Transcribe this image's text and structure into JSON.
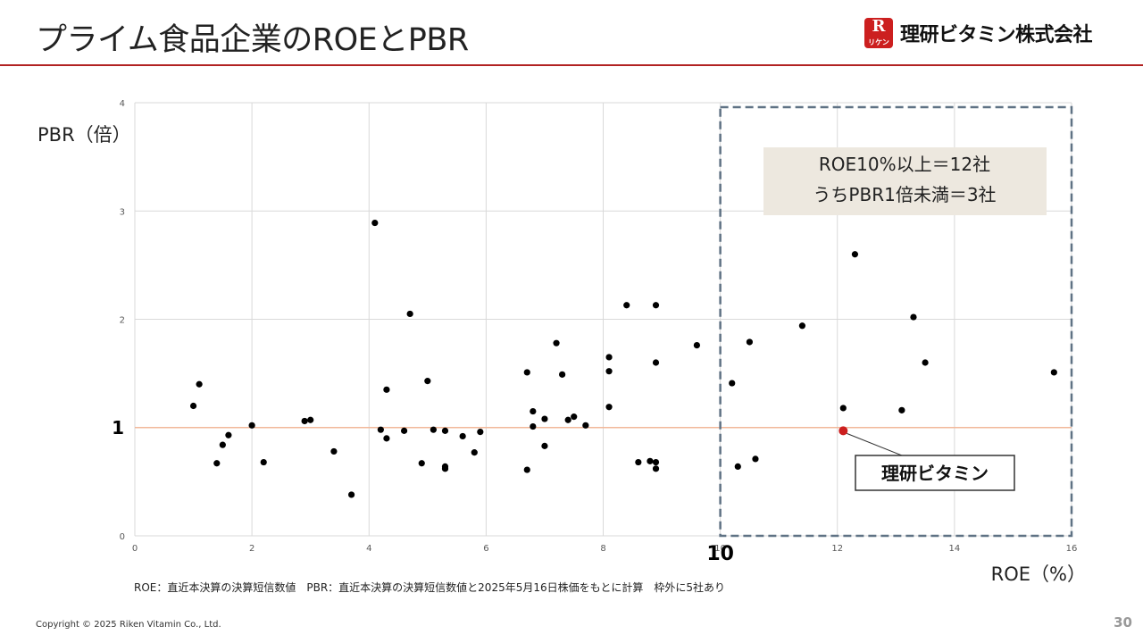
{
  "slide": {
    "title": "プライム食品企業のROEとPBR",
    "company_logo_text": "理研ビタミン株式会社",
    "logo_mark_letter": "R",
    "logo_mark_sub": "リケン",
    "footnote": "ROE：直近本決算の決算短信数値　PBR：直近本決算の決算短信数値と2025年5月16日株価をもとに計算　枠外に5社あり",
    "copyright": "Copyright © 2025 Riken Vitamin Co., Ltd.",
    "page_number": "30",
    "accent_color": "#b22222"
  },
  "chart_data": {
    "type": "scatter",
    "xlabel": "ROE（%）",
    "ylabel": "PBR（倍）",
    "xlim": [
      0,
      16
    ],
    "ylim": [
      0,
      4
    ],
    "xticks": [
      "0",
      "2",
      "4",
      "6",
      "8",
      "10",
      "12",
      "14",
      "16"
    ],
    "yticks": [
      "0",
      "1",
      "2",
      "3",
      "4"
    ],
    "grid": true,
    "reference_line": {
      "axis": "y",
      "value": 1,
      "label": "1",
      "color": "#f2b89a"
    },
    "x_marker": {
      "value": 10,
      "label": "10"
    },
    "highlight_region": {
      "x_from": 10,
      "x_to": 16,
      "y_from": 0,
      "y_to": 4
    },
    "callout_box": {
      "lines": [
        "ROE10%以上＝12社",
        "うちPBR1倍未満＝3社"
      ]
    },
    "highlight_point": {
      "x": 12.1,
      "y": 0.97,
      "label": "理研ビタミン",
      "color": "#cc1f1f"
    },
    "point_color": "#000000",
    "points": [
      {
        "x": 1.0,
        "y": 1.2
      },
      {
        "x": 1.1,
        "y": 1.4
      },
      {
        "x": 1.4,
        "y": 0.67
      },
      {
        "x": 1.5,
        "y": 0.84
      },
      {
        "x": 1.6,
        "y": 0.93
      },
      {
        "x": 2.0,
        "y": 1.02
      },
      {
        "x": 2.2,
        "y": 0.68
      },
      {
        "x": 2.9,
        "y": 1.06
      },
      {
        "x": 3.0,
        "y": 1.07
      },
      {
        "x": 3.4,
        "y": 0.78
      },
      {
        "x": 3.7,
        "y": 0.38
      },
      {
        "x": 4.1,
        "y": 2.89
      },
      {
        "x": 4.2,
        "y": 0.98
      },
      {
        "x": 4.3,
        "y": 1.35
      },
      {
        "x": 4.3,
        "y": 0.9
      },
      {
        "x": 4.6,
        "y": 0.97
      },
      {
        "x": 4.7,
        "y": 2.05
      },
      {
        "x": 4.9,
        "y": 0.67
      },
      {
        "x": 5.0,
        "y": 1.43
      },
      {
        "x": 5.1,
        "y": 0.98
      },
      {
        "x": 5.3,
        "y": 0.97
      },
      {
        "x": 5.3,
        "y": 0.64
      },
      {
        "x": 5.3,
        "y": 0.62
      },
      {
        "x": 5.6,
        "y": 0.92
      },
      {
        "x": 5.8,
        "y": 0.77
      },
      {
        "x": 5.9,
        "y": 0.96
      },
      {
        "x": 6.7,
        "y": 1.51
      },
      {
        "x": 6.7,
        "y": 0.61
      },
      {
        "x": 6.8,
        "y": 1.15
      },
      {
        "x": 6.8,
        "y": 1.01
      },
      {
        "x": 7.0,
        "y": 1.08
      },
      {
        "x": 7.0,
        "y": 0.83
      },
      {
        "x": 7.2,
        "y": 1.78
      },
      {
        "x": 7.3,
        "y": 1.49
      },
      {
        "x": 7.4,
        "y": 1.07
      },
      {
        "x": 7.5,
        "y": 1.1
      },
      {
        "x": 7.7,
        "y": 1.02
      },
      {
        "x": 8.1,
        "y": 1.65
      },
      {
        "x": 8.1,
        "y": 1.52
      },
      {
        "x": 8.1,
        "y": 1.19
      },
      {
        "x": 8.4,
        "y": 2.13
      },
      {
        "x": 8.6,
        "y": 0.68
      },
      {
        "x": 8.8,
        "y": 0.69
      },
      {
        "x": 8.9,
        "y": 2.13
      },
      {
        "x": 8.9,
        "y": 1.6
      },
      {
        "x": 8.9,
        "y": 0.68
      },
      {
        "x": 8.9,
        "y": 0.62
      },
      {
        "x": 9.6,
        "y": 1.76
      },
      {
        "x": 10.2,
        "y": 1.41
      },
      {
        "x": 10.3,
        "y": 0.64
      },
      {
        "x": 10.5,
        "y": 1.79
      },
      {
        "x": 10.6,
        "y": 0.71
      },
      {
        "x": 11.4,
        "y": 1.94
      },
      {
        "x": 12.1,
        "y": 1.18
      },
      {
        "x": 12.3,
        "y": 2.6
      },
      {
        "x": 13.1,
        "y": 1.16
      },
      {
        "x": 13.3,
        "y": 2.02
      },
      {
        "x": 13.5,
        "y": 1.6
      },
      {
        "x": 15.7,
        "y": 1.51
      }
    ]
  }
}
